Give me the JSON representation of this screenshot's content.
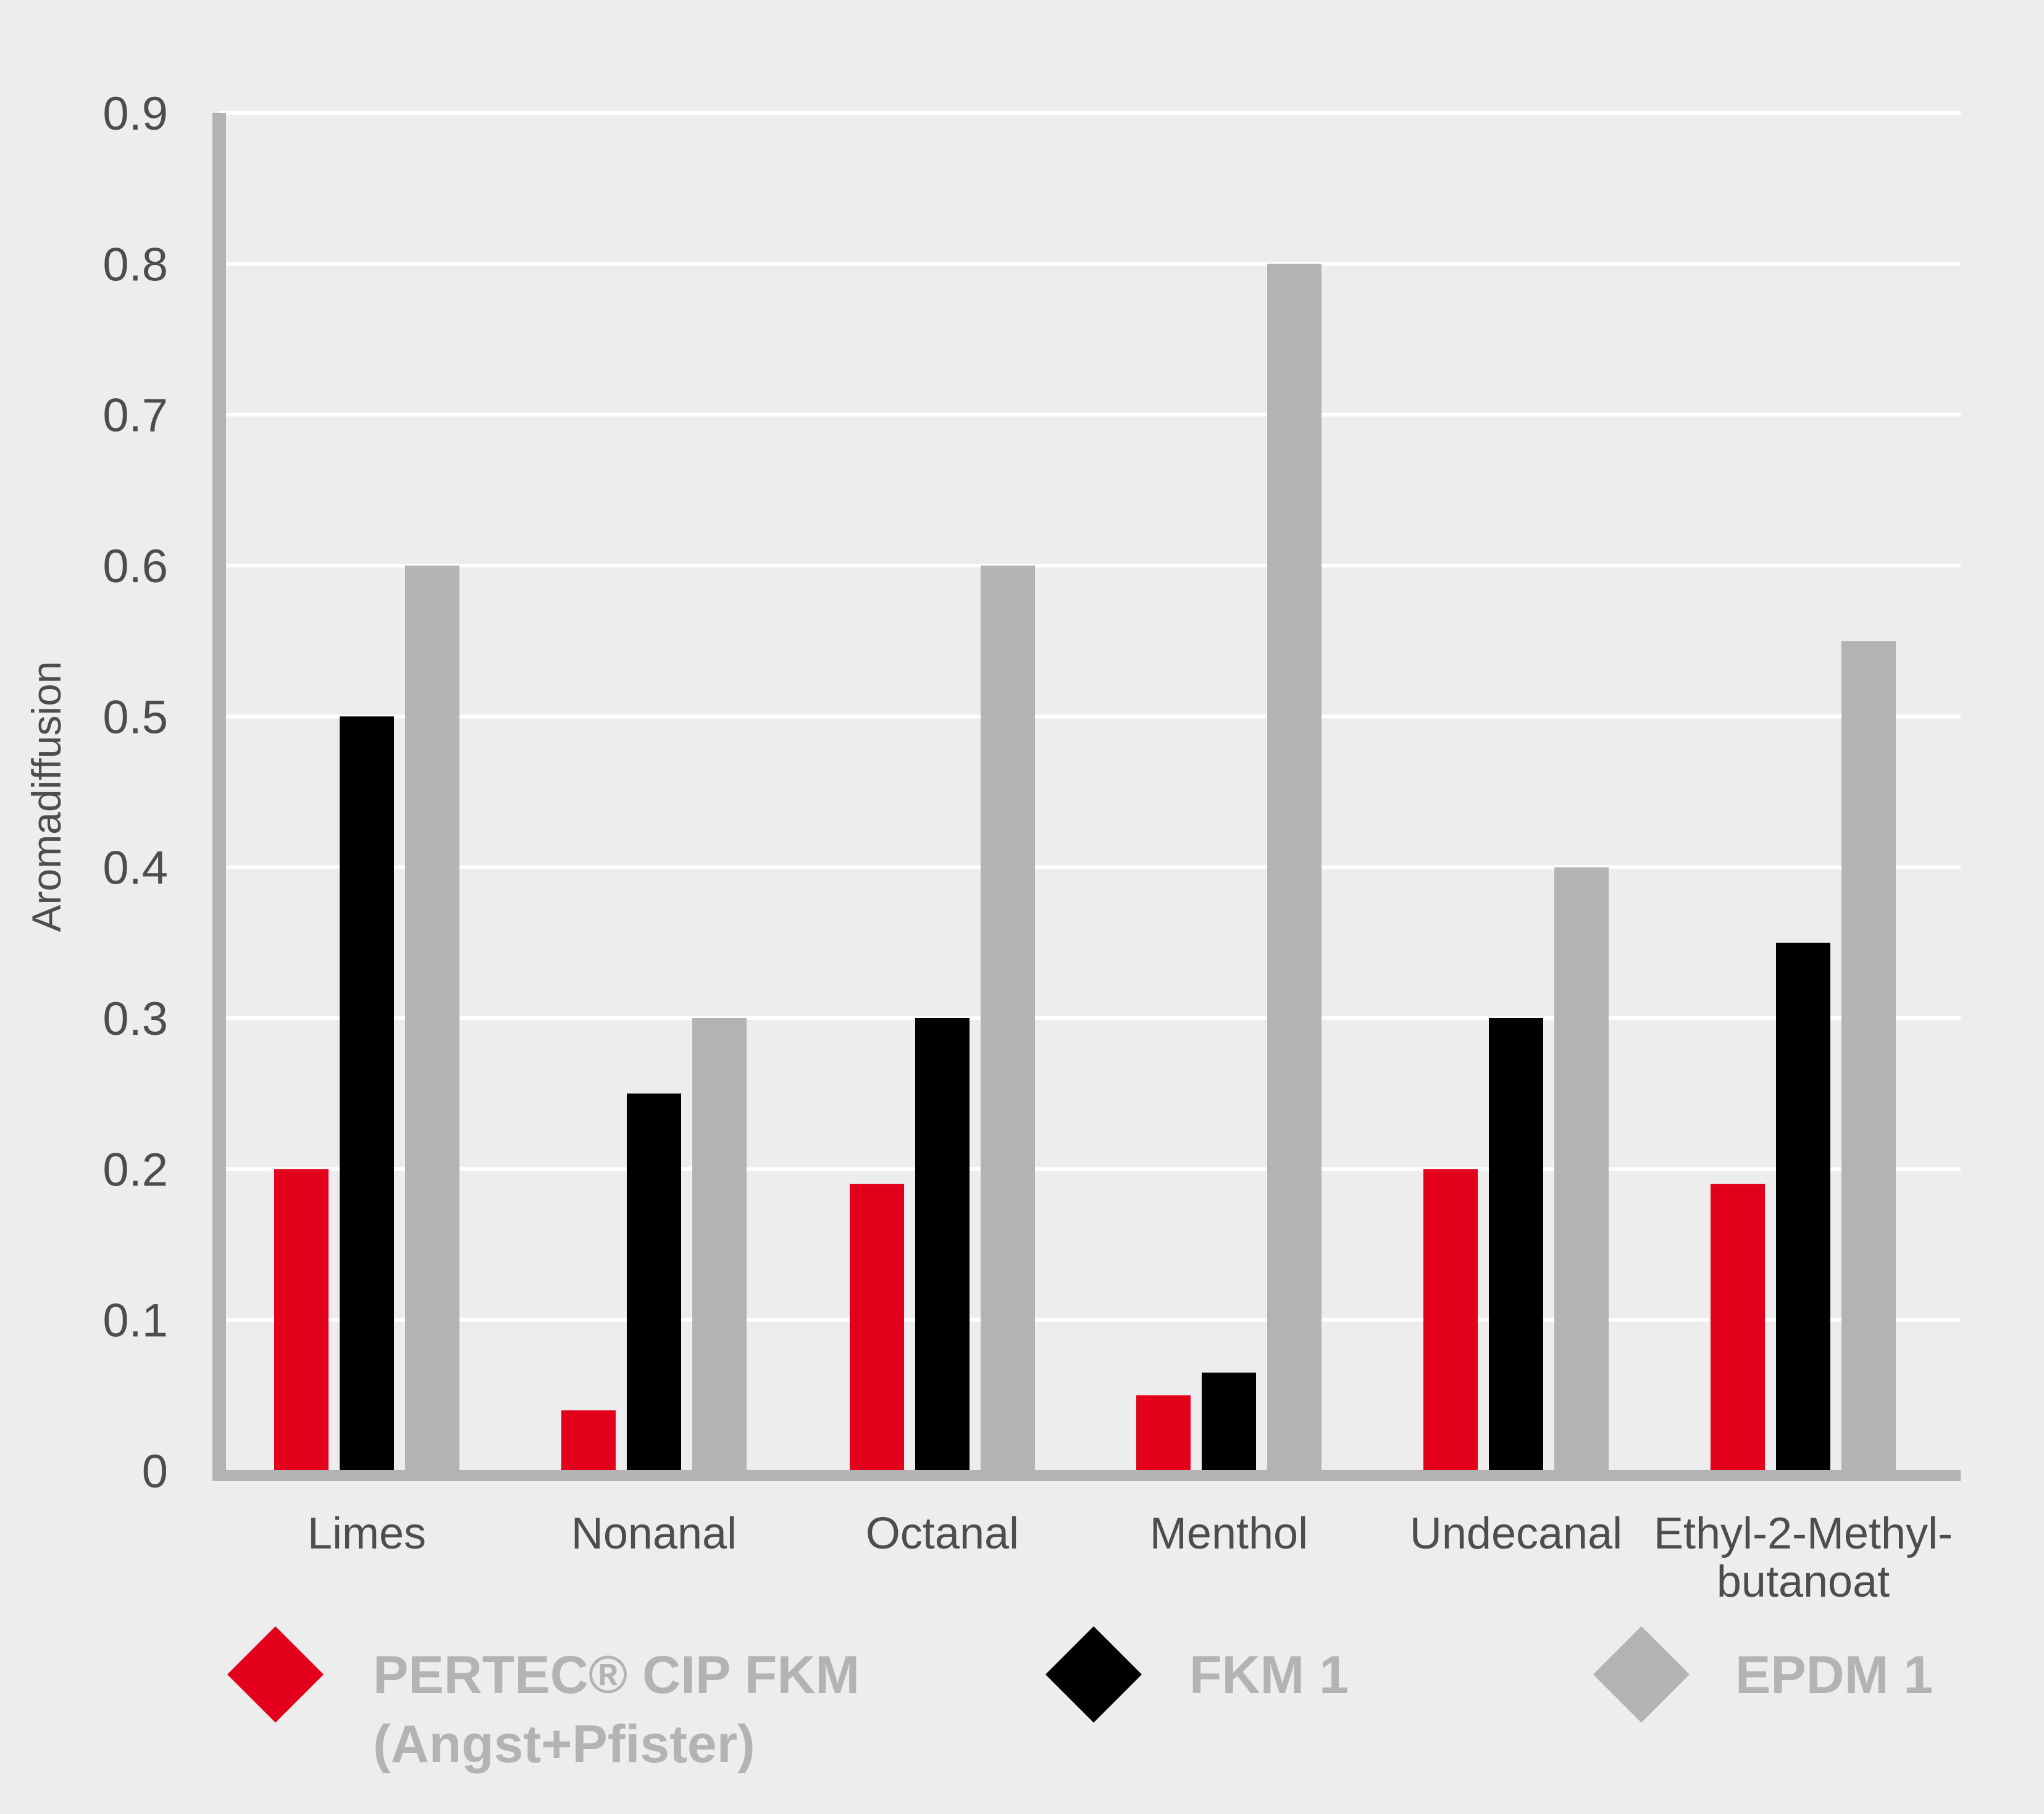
{
  "chart_data": {
    "type": "bar",
    "title": "",
    "xlabel": "",
    "ylabel": "Aromadiffusion",
    "ylim": [
      0,
      0.9
    ],
    "yticks": [
      "0",
      "0.1",
      "0.2",
      "0.3",
      "0.4",
      "0.5",
      "0.6",
      "0.7",
      "0.8",
      "0.9"
    ],
    "grid": true,
    "legend_position": "bottom",
    "categories": [
      [
        "Limes"
      ],
      [
        "Nonanal"
      ],
      [
        "Octanal"
      ],
      [
        "Menthol"
      ],
      [
        "Undecanal"
      ],
      [
        "Ethyl-2-Methyl-",
        "butanoat"
      ]
    ],
    "series": [
      {
        "name_lines": [
          "PERTEC® CIP FKM",
          "(Angst+Pfister)"
        ],
        "color": "#e2001a",
        "values": [
          0.2,
          0.04,
          0.19,
          0.05,
          0.2,
          0.19
        ]
      },
      {
        "name_lines": [
          "FKM 1"
        ],
        "color": "#000000",
        "values": [
          0.5,
          0.25,
          0.3,
          0.065,
          0.3,
          0.35
        ]
      },
      {
        "name_lines": [
          "EPDM 1"
        ],
        "color": "#b3b3b3",
        "values": [
          0.6,
          0.3,
          0.6,
          0.8,
          0.4,
          0.55
        ]
      }
    ],
    "colors": {
      "background": "#ededed",
      "axis": "#b3b3b3",
      "grid": "#ffffff",
      "text": "#4d4d4d",
      "legend_text": "#b3b3b3"
    }
  }
}
